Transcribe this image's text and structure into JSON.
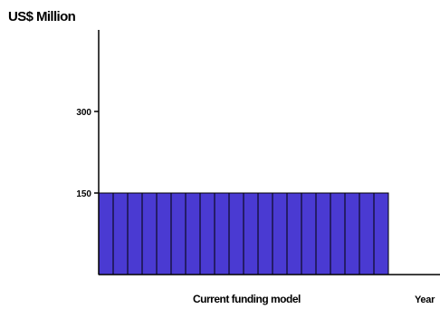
{
  "chart_data": {
    "type": "bar",
    "title": "",
    "ylabel": "US$ Million",
    "xlabel": "Year",
    "caption": "Current funding model",
    "ylim": [
      0,
      450
    ],
    "yticks": [
      150,
      300
    ],
    "bar_count": 20,
    "values": [
      150,
      150,
      150,
      150,
      150,
      150,
      150,
      150,
      150,
      150,
      150,
      150,
      150,
      150,
      150,
      150,
      150,
      150,
      150,
      150
    ],
    "bar_color": "#4a3ad2",
    "grid": false
  }
}
